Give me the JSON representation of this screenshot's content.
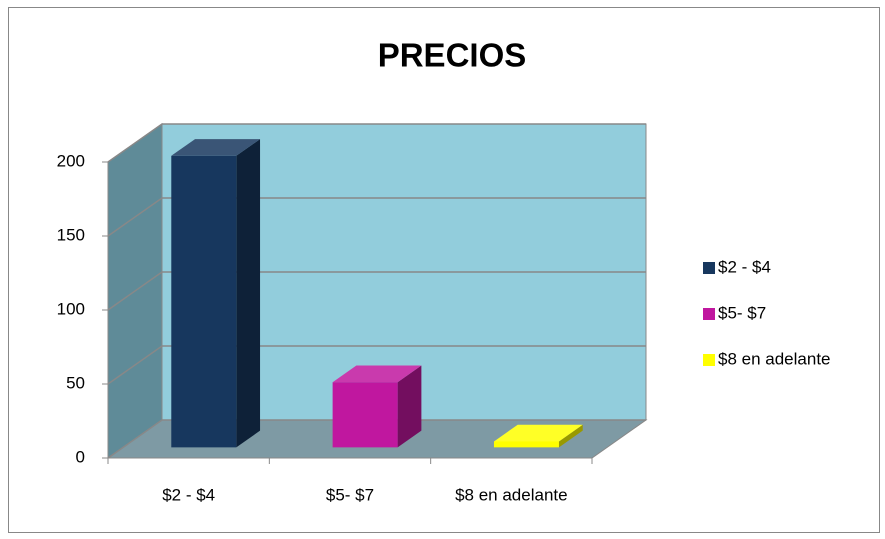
{
  "chart_data": {
    "type": "bar3d",
    "title": "PRECIOS",
    "categories": [
      "$2 - $4",
      "$5- $7",
      "$8 en adelante"
    ],
    "values": [
      197,
      44,
      4
    ],
    "colors": [
      "#17375e",
      "#c0179f",
      "#ffff00"
    ],
    "ylim": [
      0,
      200
    ],
    "yticks": [
      0,
      50,
      100,
      150,
      200
    ],
    "grid": true,
    "legend": "right"
  }
}
